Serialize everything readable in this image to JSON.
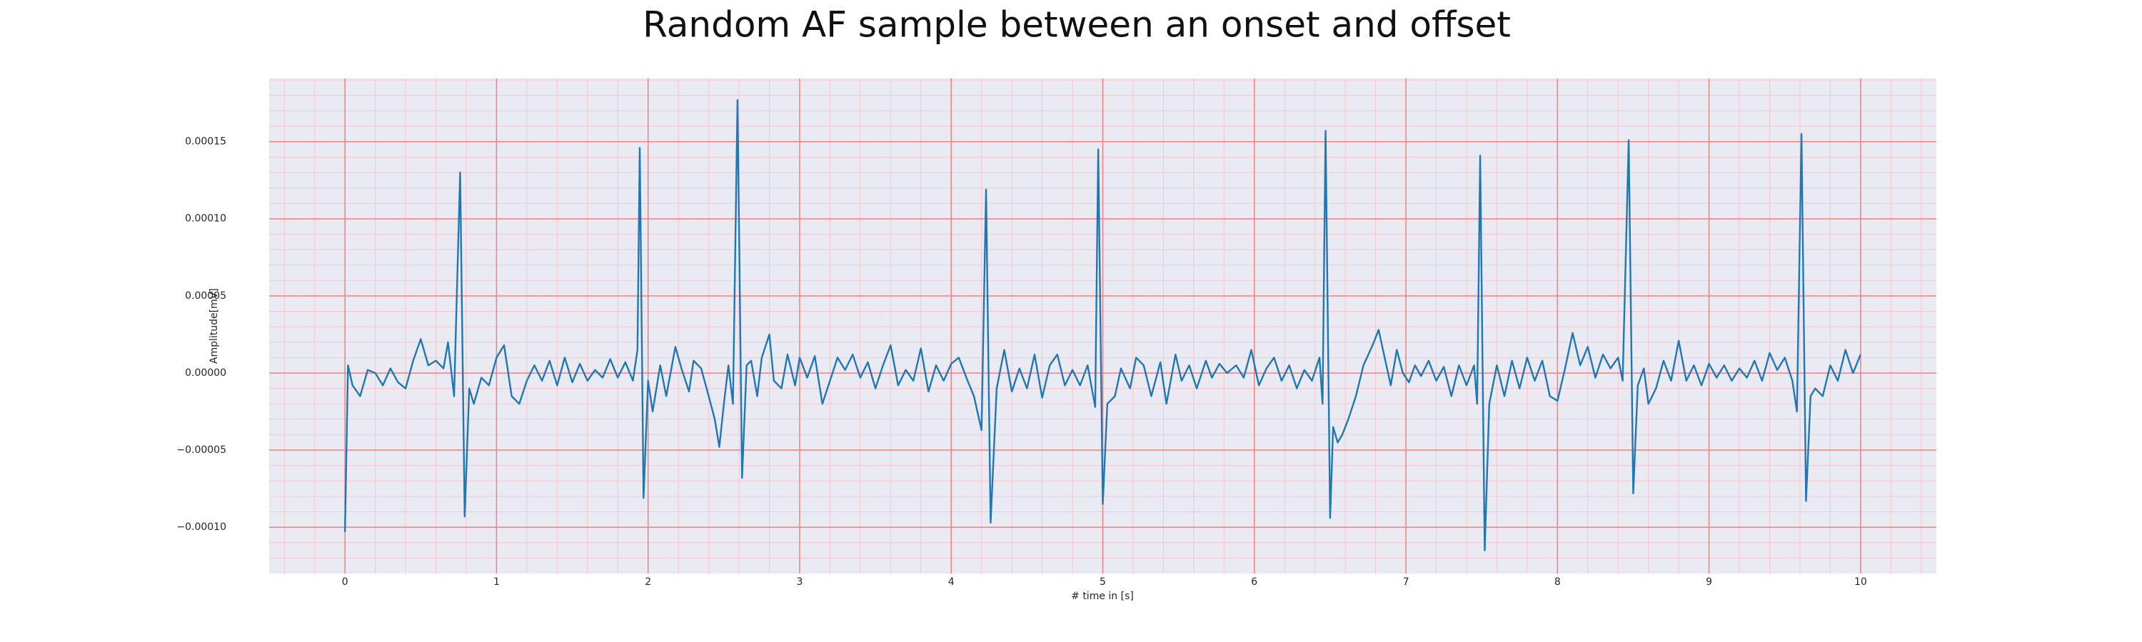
{
  "chart_data": {
    "type": "line",
    "title": "Random AF sample between an onset and offset",
    "x_label": "# time in [s]",
    "y_label": "Amplitude[mV]",
    "color": "#1f77b4",
    "facecolor": "#eaeaf2",
    "grid": true,
    "grid_color": "#f08080",
    "minor_grid": true,
    "minor_grid_color": "#f6c6d0",
    "xlim": [
      -0.5,
      10.5
    ],
    "ylim": [
      -0.00013,
      0.000191
    ],
    "xticks": [
      0,
      1,
      2,
      3,
      4,
      5,
      6,
      7,
      8,
      9,
      10
    ],
    "yticks": [
      {
        "value": -0.0001,
        "label": "−0.00010"
      },
      {
        "value": -5e-05,
        "label": "−0.00005"
      },
      {
        "value": 0,
        "label": "0.00000"
      },
      {
        "value": 5e-05,
        "label": "0.00005"
      },
      {
        "value": 0.0001,
        "label": "0.00010"
      },
      {
        "value": 0.00015,
        "label": "0.00015"
      }
    ],
    "xminorticks": [
      -0.4,
      -0.2,
      0.2,
      0.4,
      0.6,
      0.8,
      1.2,
      1.4,
      1.6,
      1.8,
      2.2,
      2.4,
      2.6,
      2.8,
      3.2,
      3.4,
      3.6,
      3.8,
      4.2,
      4.4,
      4.6,
      4.8,
      5.2,
      5.4,
      5.6,
      5.8,
      6.2,
      6.4,
      6.6,
      6.8,
      7.2,
      7.4,
      7.6,
      7.8,
      8.2,
      8.4,
      8.6,
      8.8,
      9.2,
      9.4,
      9.6,
      9.8,
      10.2,
      10.4
    ],
    "yminorticks": [
      -0.00012,
      -0.00011,
      -9e-05,
      -8e-05,
      -7e-05,
      -6e-05,
      -4e-05,
      -3e-05,
      -2e-05,
      -1e-05,
      1e-05,
      2e-05,
      3e-05,
      4e-05,
      6e-05,
      7e-05,
      8e-05,
      9e-05,
      0.00011,
      0.00012,
      0.00013,
      0.00014,
      0.00016,
      0.00017,
      0.00018,
      0.00019
    ],
    "x": [
      0,
      0.02,
      0.05,
      0.1,
      0.15,
      0.2,
      0.25,
      0.3,
      0.35,
      0.4,
      0.45,
      0.5,
      0.55,
      0.6,
      0.65,
      0.68,
      0.72,
      0.76,
      0.79,
      0.82,
      0.85,
      0.9,
      0.95,
      1.0,
      1.05,
      1.1,
      1.15,
      1.2,
      1.25,
      1.3,
      1.35,
      1.4,
      1.45,
      1.5,
      1.55,
      1.6,
      1.65,
      1.7,
      1.75,
      1.8,
      1.85,
      1.9,
      1.93,
      1.945,
      1.97,
      2.0,
      2.03,
      2.08,
      2.12,
      2.18,
      2.22,
      2.27,
      2.3,
      2.35,
      2.4,
      2.44,
      2.47,
      2.5,
      2.53,
      2.56,
      2.59,
      2.62,
      2.65,
      2.68,
      2.72,
      2.75,
      2.8,
      2.83,
      2.88,
      2.92,
      2.97,
      3.0,
      3.05,
      3.1,
      3.15,
      3.2,
      3.25,
      3.3,
      3.35,
      3.4,
      3.45,
      3.5,
      3.55,
      3.6,
      3.65,
      3.7,
      3.75,
      3.8,
      3.85,
      3.9,
      3.95,
      4.0,
      4.05,
      4.1,
      4.15,
      4.2,
      4.23,
      4.26,
      4.3,
      4.35,
      4.4,
      4.45,
      4.5,
      4.55,
      4.6,
      4.65,
      4.7,
      4.75,
      4.8,
      4.85,
      4.9,
      4.95,
      4.97,
      5.0,
      5.03,
      5.08,
      5.12,
      5.18,
      5.22,
      5.27,
      5.32,
      5.38,
      5.42,
      5.48,
      5.52,
      5.57,
      5.62,
      5.68,
      5.72,
      5.77,
      5.82,
      5.88,
      5.93,
      5.98,
      6.03,
      6.08,
      6.13,
      6.18,
      6.23,
      6.28,
      6.33,
      6.38,
      6.43,
      6.45,
      6.47,
      6.5,
      6.52,
      6.55,
      6.58,
      6.62,
      6.67,
      6.72,
      6.78,
      6.82,
      6.86,
      6.9,
      6.94,
      6.98,
      7.02,
      7.06,
      7.1,
      7.15,
      7.2,
      7.25,
      7.3,
      7.35,
      7.4,
      7.45,
      7.47,
      7.49,
      7.52,
      7.55,
      7.6,
      7.65,
      7.7,
      7.75,
      7.8,
      7.85,
      7.9,
      7.95,
      8.0,
      8.05,
      8.1,
      8.15,
      8.2,
      8.25,
      8.3,
      8.35,
      8.4,
      8.43,
      8.47,
      8.5,
      8.53,
      8.57,
      8.6,
      8.65,
      8.7,
      8.75,
      8.8,
      8.85,
      8.9,
      8.95,
      9.0,
      9.05,
      9.1,
      9.15,
      9.2,
      9.25,
      9.3,
      9.35,
      9.4,
      9.45,
      9.5,
      9.55,
      9.58,
      9.61,
      9.64,
      9.67,
      9.7,
      9.75,
      9.8,
      9.85,
      9.9,
      9.95,
      10.0
    ],
    "values": [
      -0.000103,
      5e-06,
      -8e-06,
      -1.5e-05,
      2e-06,
      0,
      -8e-06,
      3e-06,
      -6e-06,
      -1e-05,
      8e-06,
      2.2e-05,
      5e-06,
      8e-06,
      3e-06,
      2e-05,
      -1.5e-05,
      0.00013,
      -9.3e-05,
      -1e-05,
      -2e-05,
      -3e-06,
      -8e-06,
      1e-05,
      1.8e-05,
      -1.5e-05,
      -2e-05,
      -5e-06,
      5e-06,
      -5e-06,
      8e-06,
      -8e-06,
      1e-05,
      -6e-06,
      6e-06,
      -5e-06,
      2e-06,
      -3e-06,
      9e-06,
      -3e-06,
      7e-06,
      -5e-06,
      1.5e-05,
      0.000146,
      -8.1e-05,
      -5e-06,
      -2.5e-05,
      5e-06,
      -1.5e-05,
      1.7e-05,
      3e-06,
      -1.2e-05,
      8e-06,
      3e-06,
      -1.5e-05,
      -3e-05,
      -4.8e-05,
      -2e-05,
      5e-06,
      -2e-05,
      0.000177,
      -6.8e-05,
      5e-06,
      8e-06,
      -1.5e-05,
      1e-05,
      2.5e-05,
      -5e-06,
      -1e-05,
      1.2e-05,
      -8e-06,
      1e-05,
      -3e-06,
      1.1e-05,
      -2e-05,
      -5e-06,
      1e-05,
      2e-06,
      1.2e-05,
      -3e-06,
      7e-06,
      -1e-05,
      5e-06,
      1.8e-05,
      -8e-06,
      2e-06,
      -5e-06,
      1.6e-05,
      -1.2e-05,
      5e-06,
      -5e-06,
      6e-06,
      1e-05,
      -3e-06,
      -1.5e-05,
      -3.7e-05,
      0.000119,
      -9.7e-05,
      -1e-05,
      1.5e-05,
      -1.2e-05,
      3e-06,
      -1e-05,
      1.2e-05,
      -1.6e-05,
      5e-06,
      1.2e-05,
      -8e-06,
      2e-06,
      -8e-06,
      5e-06,
      -2.2e-05,
      0.000145,
      -8.5e-05,
      -2e-05,
      -1.5e-05,
      3e-06,
      -1e-05,
      1e-05,
      5e-06,
      -1.5e-05,
      7e-06,
      -2e-05,
      1.2e-05,
      -5e-06,
      5e-06,
      -1e-05,
      8e-06,
      -3e-06,
      6e-06,
      0,
      5e-06,
      -3e-06,
      1.5e-05,
      -8e-06,
      3e-06,
      1e-05,
      -5e-06,
      5e-06,
      -1e-05,
      2e-06,
      -5e-06,
      1e-05,
      -2e-05,
      0.000157,
      -9.4e-05,
      -3.5e-05,
      -4.5e-05,
      -4e-05,
      -3e-05,
      -1.5e-05,
      5e-06,
      1.8e-05,
      2.8e-05,
      1e-05,
      -8e-06,
      1.5e-05,
      0,
      -6e-06,
      5e-06,
      -2e-06,
      8e-06,
      -5e-06,
      4e-06,
      -1.5e-05,
      5e-06,
      -8e-06,
      5e-06,
      -2e-05,
      0.000141,
      -0.000115,
      -2e-05,
      5e-06,
      -1.5e-05,
      8e-06,
      -1e-05,
      1e-05,
      -5e-06,
      8e-06,
      -1.5e-05,
      -1.8e-05,
      3e-06,
      2.6e-05,
      5e-06,
      1.7e-05,
      -3e-06,
      1.2e-05,
      3e-06,
      1e-05,
      -5e-06,
      0.000151,
      -7.8e-05,
      -8e-06,
      3e-06,
      -2e-05,
      -1e-05,
      8e-06,
      -5e-06,
      2.1e-05,
      -5e-06,
      5e-06,
      -8e-06,
      6e-06,
      -3e-06,
      5e-06,
      -5e-06,
      3e-06,
      -3e-06,
      8e-06,
      -5e-06,
      1.3e-05,
      2e-06,
      1e-05,
      -5e-06,
      -2.5e-05,
      0.000155,
      -8.3e-05,
      -1.5e-05,
      -1e-05,
      -1.5e-05,
      5e-06,
      -5e-06,
      1.5e-05,
      0,
      1.2e-05
    ]
  }
}
